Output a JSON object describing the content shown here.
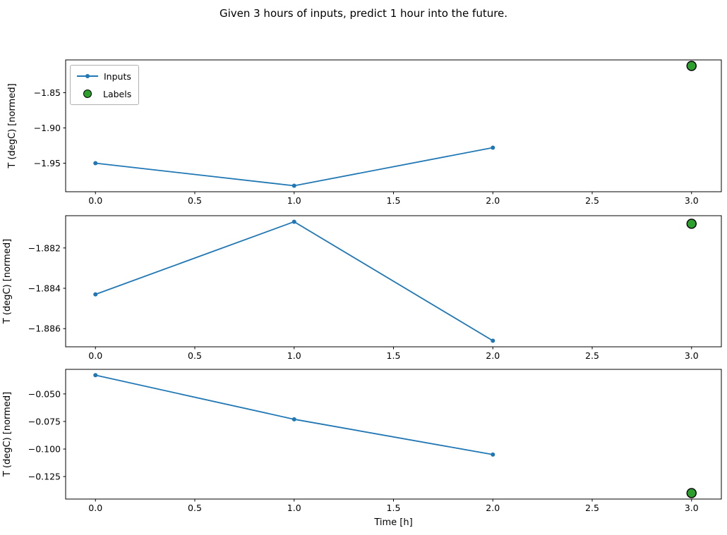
{
  "figure": {
    "title": "Given 3 hours of inputs, predict 1 hour into the future.",
    "background": "#ffffff"
  },
  "colors": {
    "inputs_line": "#1f77b4",
    "labels_fill": "#2ca02c",
    "labels_edge": "#000000",
    "axis": "#000000",
    "text": "#000000",
    "legend_border": "#b0b0b0"
  },
  "legend": {
    "position": "upper left",
    "items": [
      {
        "label": "Inputs",
        "marker": "line-with-dot",
        "color": "#1f77b4"
      },
      {
        "label": "Labels",
        "marker": "filled-circle",
        "fill": "#2ca02c",
        "edge": "#000000"
      }
    ]
  },
  "chart_data": [
    {
      "type": "line",
      "title": "",
      "xlabel": "",
      "ylabel": "T (degC) [normed]",
      "xlim": [
        -0.15,
        3.15
      ],
      "ylim": [
        -1.9905,
        -1.8035
      ],
      "grid": false,
      "x_ticks": [
        {
          "v": 0.0,
          "label": "0.0"
        },
        {
          "v": 0.5,
          "label": "0.5"
        },
        {
          "v": 1.0,
          "label": "1.0"
        },
        {
          "v": 1.5,
          "label": "1.5"
        },
        {
          "v": 2.0,
          "label": "2.0"
        },
        {
          "v": 2.5,
          "label": "2.5"
        },
        {
          "v": 3.0,
          "label": "3.0"
        }
      ],
      "y_ticks": [
        {
          "v": -1.85,
          "label": "−1.85"
        },
        {
          "v": -1.9,
          "label": "−1.90"
        },
        {
          "v": -1.95,
          "label": "−1.95"
        }
      ],
      "series": [
        {
          "name": "Inputs",
          "type": "line",
          "x": [
            0,
            1,
            2
          ],
          "y": [
            -1.95,
            -1.982,
            -1.928
          ]
        },
        {
          "name": "Labels",
          "type": "scatter",
          "x": [
            3
          ],
          "y": [
            -1.812
          ]
        }
      ]
    },
    {
      "type": "line",
      "title": "",
      "xlabel": "",
      "ylabel": "T (degC) [normed]",
      "xlim": [
        -0.15,
        3.15
      ],
      "ylim": [
        -1.8869,
        -1.8804
      ],
      "grid": false,
      "x_ticks": [
        {
          "v": 0.0,
          "label": "0.0"
        },
        {
          "v": 0.5,
          "label": "0.5"
        },
        {
          "v": 1.0,
          "label": "1.0"
        },
        {
          "v": 1.5,
          "label": "1.5"
        },
        {
          "v": 2.0,
          "label": "2.0"
        },
        {
          "v": 2.5,
          "label": "2.5"
        },
        {
          "v": 3.0,
          "label": "3.0"
        }
      ],
      "y_ticks": [
        {
          "v": -1.882,
          "label": "−1.882"
        },
        {
          "v": -1.884,
          "label": "−1.884"
        },
        {
          "v": -1.886,
          "label": "−1.886"
        }
      ],
      "series": [
        {
          "name": "Inputs",
          "type": "line",
          "x": [
            0,
            1,
            2
          ],
          "y": [
            -1.8843,
            -1.8807,
            -1.8866
          ]
        },
        {
          "name": "Labels",
          "type": "scatter",
          "x": [
            3
          ],
          "y": [
            -1.8808
          ]
        }
      ]
    },
    {
      "type": "line",
      "title": "",
      "xlabel": "Time [h]",
      "ylabel": "T (degC) [normed]",
      "xlim": [
        -0.15,
        3.15
      ],
      "ylim": [
        -0.1454,
        -0.0277
      ],
      "grid": false,
      "x_ticks": [
        {
          "v": 0.0,
          "label": "0.0"
        },
        {
          "v": 0.5,
          "label": "0.5"
        },
        {
          "v": 1.0,
          "label": "1.0"
        },
        {
          "v": 1.5,
          "label": "1.5"
        },
        {
          "v": 2.0,
          "label": "2.0"
        },
        {
          "v": 2.5,
          "label": "2.5"
        },
        {
          "v": 3.0,
          "label": "3.0"
        }
      ],
      "y_ticks": [
        {
          "v": -0.05,
          "label": "−0.050"
        },
        {
          "v": -0.075,
          "label": "−0.075"
        },
        {
          "v": -0.1,
          "label": "−0.100"
        },
        {
          "v": -0.125,
          "label": "−0.125"
        }
      ],
      "series": [
        {
          "name": "Inputs",
          "type": "line",
          "x": [
            0,
            1,
            2
          ],
          "y": [
            -0.033,
            -0.073,
            -0.105
          ]
        },
        {
          "name": "Labels",
          "type": "scatter",
          "x": [
            3
          ],
          "y": [
            -0.14
          ]
        }
      ]
    }
  ]
}
